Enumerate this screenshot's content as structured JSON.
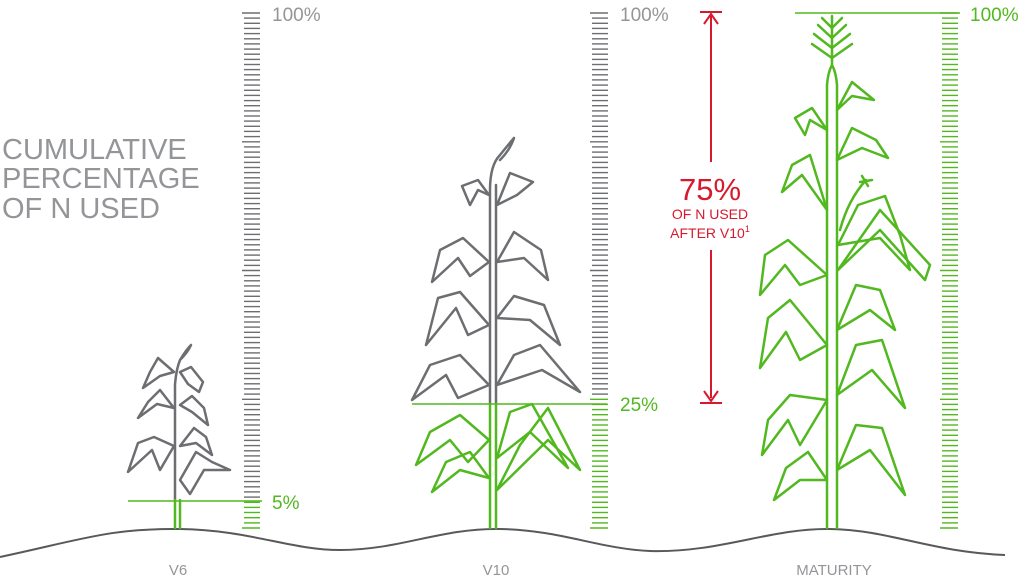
{
  "heading": [
    "CUMULATIVE",
    "PERCENTAGE",
    "OF N USED"
  ],
  "stages": [
    {
      "label": "V6",
      "percent_label": "5%",
      "percent_value": 5,
      "top_label": "100%"
    },
    {
      "label": "V10",
      "percent_label": "25%",
      "percent_value": 25,
      "top_label": "100%"
    },
    {
      "label": "MATURITY",
      "percent_label": "100%",
      "percent_value": 100,
      "top_label": ""
    }
  ],
  "callout": {
    "big": "75%",
    "line1": "OF N USED",
    "line2": "AFTER V10",
    "footnote": "1"
  },
  "colors": {
    "gray": "#6d6e71",
    "green": "#52b81f",
    "red": "#d7192d",
    "ground": "#58595b",
    "text_gray": "#939598"
  }
}
